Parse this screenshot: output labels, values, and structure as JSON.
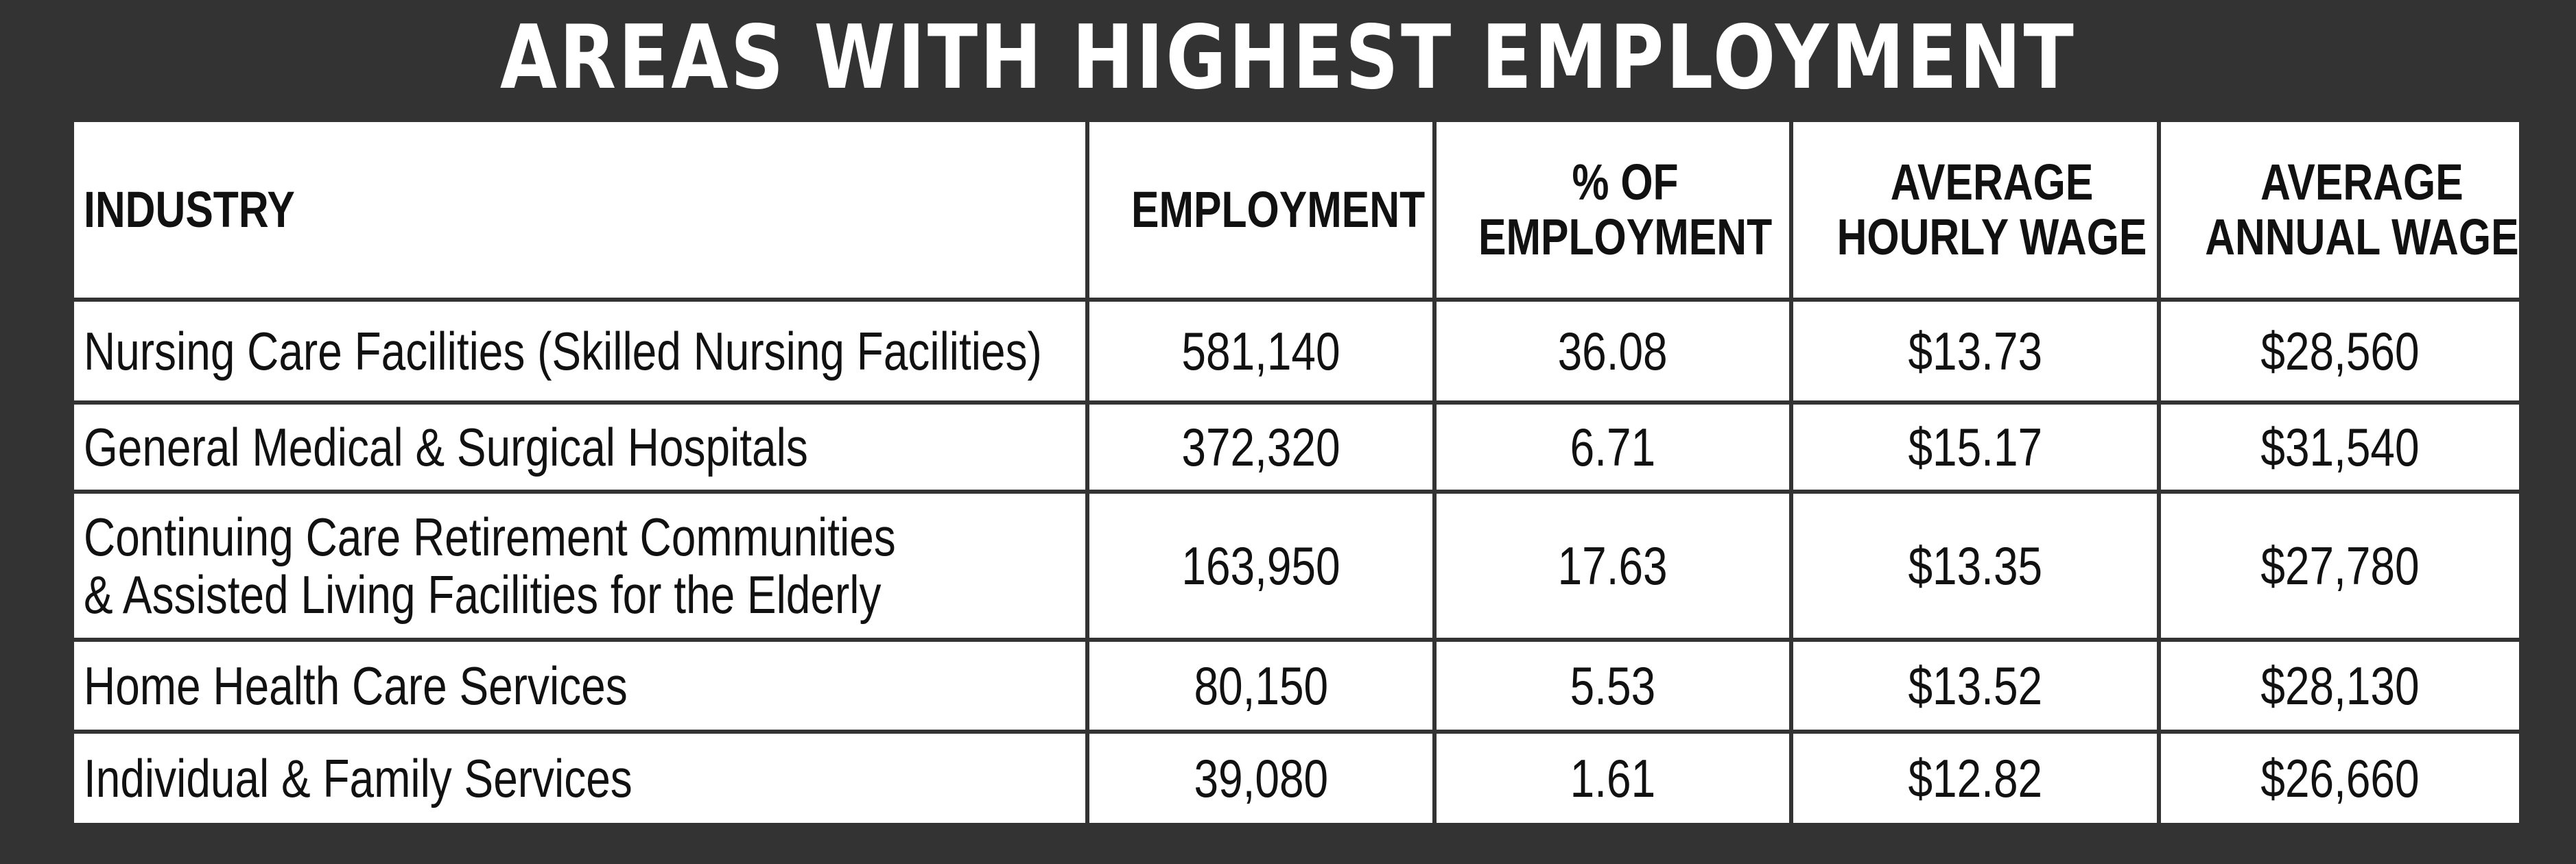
{
  "title": "AREAS WITH HIGHEST EMPLOYMENT",
  "headers": {
    "industry": "INDUSTRY",
    "employment": "EMPLOYMENT",
    "pct_line1": "% OF",
    "pct_line2": "EMPLOYMENT",
    "hourly_line1": "AVERAGE",
    "hourly_line2": "HOURLY WAGE",
    "annual_line1": "AVERAGE",
    "annual_line2": "ANNUAL WAGE"
  },
  "rows": [
    {
      "industry_line1": "Nursing Care Facilities (Skilled Nursing Facilities)",
      "industry_line2": "",
      "employment": "581,140",
      "pct": "36.08",
      "hourly": "$13.73",
      "annual": "$28,560"
    },
    {
      "industry_line1": "General Medical & Surgical Hospitals",
      "industry_line2": "",
      "employment": "372,320",
      "pct": "6.71",
      "hourly": "$15.17",
      "annual": "$31,540"
    },
    {
      "industry_line1": "Continuing Care Retirement Communities",
      "industry_line2": "& Assisted Living Facilities for the Elderly",
      "employment": "163,950",
      "pct": "17.63",
      "hourly": "$13.35",
      "annual": "$27,780"
    },
    {
      "industry_line1": "Home Health Care Services",
      "industry_line2": "",
      "employment": "80,150",
      "pct": "5.53",
      "hourly": "$13.52",
      "annual": "$28,130"
    },
    {
      "industry_line1": "Individual & Family Services",
      "industry_line2": "",
      "employment": "39,080",
      "pct": "1.61",
      "hourly": "$12.82",
      "annual": "$26,660"
    }
  ],
  "colors": {
    "background": "#333333",
    "title": "#ffffff",
    "cell": "#ffffff",
    "text": "#111111"
  }
}
